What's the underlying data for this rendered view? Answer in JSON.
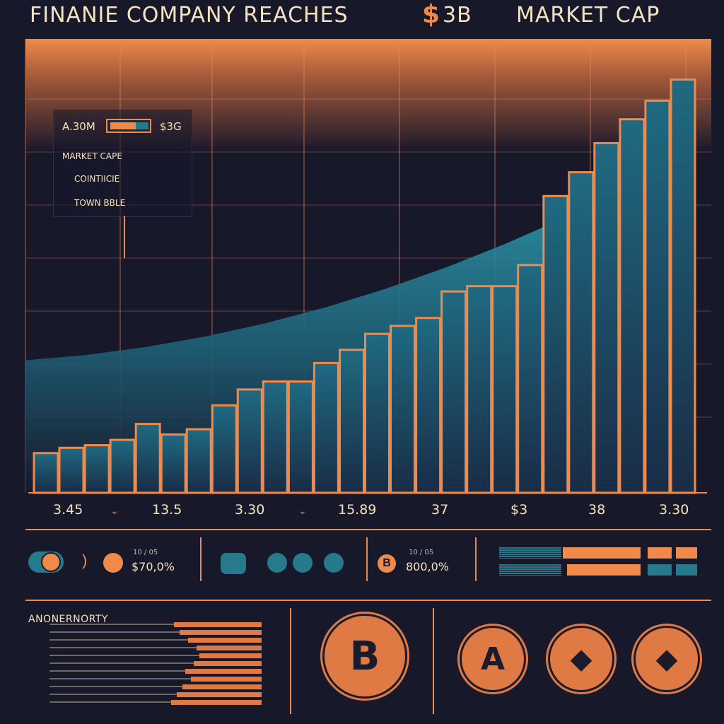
{
  "header": {
    "title_part1": "FINANIE COMPANY REACHES",
    "dollar_symbol": "$",
    "title_value": "3B",
    "title_part2": "MARKET CAP"
  },
  "legend": {
    "value_left": "A.30M",
    "value_right": "$3G",
    "items": [
      "MARKET CAPE",
      "COINTIICIE",
      "TOWN BBLE"
    ]
  },
  "chart_data": {
    "type": "bar",
    "title": "FINANIE COMPANY REACHES $3B MARKET CAP",
    "values": [
      1.5,
      1.7,
      1.8,
      2.0,
      2.6,
      2.2,
      2.4,
      3.3,
      3.9,
      4.2,
      4.2,
      4.9,
      5.4,
      6.0,
      6.3,
      6.6,
      7.6,
      7.8,
      7.8,
      8.6,
      11.2,
      12.1,
      13.2,
      14.1,
      14.8,
      15.6
    ],
    "x_tick_labels": [
      "3.45",
      "13.5",
      "3.30",
      "15.89",
      "37",
      "$3",
      "38",
      "3.30"
    ],
    "ylim": [
      0,
      17
    ],
    "area_series": [
      5.0,
      5.2,
      5.5,
      5.9,
      6.4,
      7.0,
      7.7,
      8.5,
      9.4,
      10.4
    ],
    "grid": true,
    "colors": {
      "bar_fill": "#1d5b74",
      "bar_outline": "#f08a4b",
      "area": "#2a8ea3",
      "header_band": "#f08a4b",
      "background": "#18182b"
    }
  },
  "stats": {
    "first": {
      "caption": "10 / 05",
      "value": "$70,0%"
    },
    "second": {
      "caption": "10 / 05",
      "value": "800,0%"
    },
    "icons": [
      "toggle-icon",
      "coin-stack-icon",
      "bitcoin-icon"
    ]
  },
  "bottom": {
    "list_label": "ANONERNORTY",
    "bar_values": [
      0.62,
      0.58,
      0.52,
      0.46,
      0.44,
      0.48,
      0.54,
      0.5,
      0.56,
      0.6,
      0.64
    ],
    "coins": [
      {
        "name": "bitcoin-coin-icon",
        "symbol": "B"
      },
      {
        "name": "a-coin-icon",
        "symbol": "A"
      },
      {
        "name": "ethereum-coin-icon",
        "symbol": "◆"
      },
      {
        "name": "ethereum-coin-icon-2",
        "symbol": "◆"
      }
    ]
  }
}
